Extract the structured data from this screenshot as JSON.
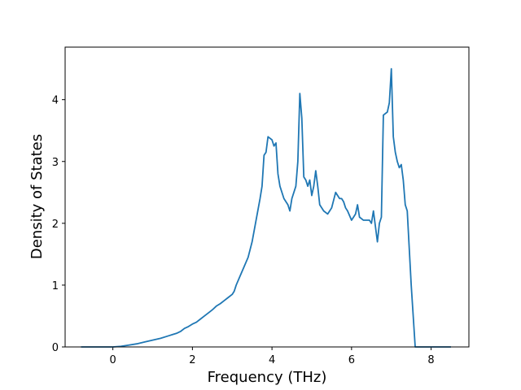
{
  "chart_data": {
    "type": "line",
    "title": "",
    "xlabel": "Frequency (THz)",
    "ylabel": "Density of States",
    "xlim": [
      -1.2,
      8.95
    ],
    "ylim": [
      0,
      4.85
    ],
    "xticks": [
      0,
      2,
      4,
      6,
      8
    ],
    "yticks": [
      0,
      1,
      2,
      3,
      4
    ],
    "grid": false,
    "legend": "none",
    "line_color": "#1f77b4",
    "series": [
      {
        "x": [
          -0.8,
          -0.5,
          -0.2,
          0.0,
          0.2,
          0.4,
          0.6,
          0.8,
          1.0,
          1.2,
          1.4,
          1.5,
          1.6,
          1.7,
          1.8,
          1.9,
          2.0,
          2.1,
          2.2,
          2.3,
          2.4,
          2.5,
          2.6,
          2.7,
          2.8,
          2.9,
          3.0,
          3.05,
          3.1,
          3.2,
          3.3,
          3.4,
          3.5,
          3.6,
          3.7,
          3.75,
          3.8,
          3.85,
          3.9,
          4.0,
          4.05,
          4.1,
          4.15,
          4.2,
          4.3,
          4.4,
          4.45,
          4.5,
          4.6,
          4.65,
          4.7,
          4.75,
          4.8,
          4.85,
          4.9,
          4.95,
          5.0,
          5.05,
          5.1,
          5.15,
          5.2,
          5.3,
          5.4,
          5.45,
          5.5,
          5.6,
          5.65,
          5.7,
          5.75,
          5.8,
          5.85,
          5.9,
          6.0,
          6.05,
          6.1,
          6.15,
          6.2,
          6.3,
          6.4,
          6.45,
          6.5,
          6.55,
          6.6,
          6.65,
          6.7,
          6.75,
          6.8,
          6.9,
          6.95,
          7.0,
          7.05,
          7.1,
          7.15,
          7.2,
          7.25,
          7.3,
          7.35,
          7.4,
          7.45,
          7.5,
          7.55,
          7.6,
          7.65,
          7.7,
          7.75,
          7.8,
          8.0,
          8.2,
          8.5
        ],
        "y": [
          0.0,
          0.0,
          0.0,
          0.0,
          0.01,
          0.03,
          0.05,
          0.08,
          0.11,
          0.14,
          0.18,
          0.2,
          0.22,
          0.25,
          0.3,
          0.33,
          0.37,
          0.4,
          0.45,
          0.5,
          0.55,
          0.6,
          0.66,
          0.7,
          0.75,
          0.8,
          0.85,
          0.9,
          1.0,
          1.15,
          1.3,
          1.45,
          1.7,
          2.05,
          2.4,
          2.6,
          3.1,
          3.15,
          3.4,
          3.35,
          3.25,
          3.3,
          2.8,
          2.6,
          2.4,
          2.3,
          2.2,
          2.4,
          2.6,
          3.0,
          4.1,
          3.7,
          2.75,
          2.7,
          2.6,
          2.7,
          2.45,
          2.6,
          2.85,
          2.6,
          2.3,
          2.2,
          2.15,
          2.2,
          2.25,
          2.5,
          2.45,
          2.4,
          2.4,
          2.35,
          2.25,
          2.2,
          2.05,
          2.1,
          2.15,
          2.3,
          2.1,
          2.05,
          2.05,
          2.05,
          2.0,
          2.2,
          1.95,
          1.7,
          2.0,
          2.1,
          3.75,
          3.8,
          3.95,
          4.5,
          3.4,
          3.15,
          3.0,
          2.9,
          2.95,
          2.7,
          2.3,
          2.2,
          1.6,
          1.0,
          0.5,
          0.0,
          0.0,
          0.0,
          0.0,
          0.0,
          0.0,
          0.0,
          0.0
        ]
      }
    ]
  }
}
